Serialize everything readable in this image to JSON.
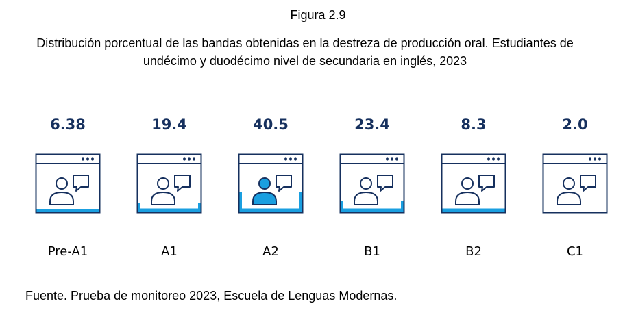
{
  "figure_label": "Figura 2.9",
  "title_line1": "Distribución porcentual de las bandas obtenidas en la destreza de producción oral. Estudiantes de",
  "title_line2": "undécimo y duodécimo nivel de secundaria en inglés, 2023",
  "source": "Fuente. Prueba de monitoreo 2023, Escuela de Lenguas Modernas.",
  "colors": {
    "value_text": "#16305e",
    "outline": "#16305e",
    "fill": "#1a9fe0",
    "axis": "#c8c8c8"
  },
  "chart_data": {
    "type": "bar",
    "categories": [
      "Pre-A1",
      "A1",
      "A2",
      "B1",
      "B2",
      "C1"
    ],
    "value_labels": [
      "6.38",
      "19.4",
      "40.5",
      "23.4",
      "8.3",
      "2.0"
    ],
    "values": [
      6.38,
      19.4,
      40.5,
      23.4,
      8.3,
      2.0
    ],
    "ylim": [
      0,
      100
    ],
    "grid": false,
    "legend": "none",
    "icon": "video-call-window-icon"
  }
}
